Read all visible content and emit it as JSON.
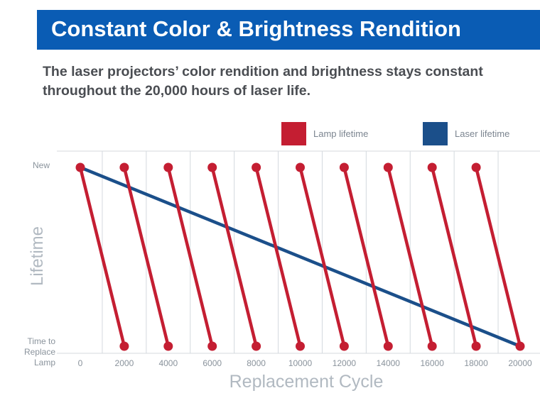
{
  "header": {
    "title": "Constant Color & Brightness Rendition",
    "subtitle_line1": "The laser projectors’ color rendition and brightness stays constant",
    "subtitle_line2": "throughout the 20,000 hours of laser life."
  },
  "colors": {
    "banner": "#0a5cb4",
    "lamp": "#c41e32",
    "laser": "#1b4f8a",
    "grid": "#d4d9de"
  },
  "chart_data": {
    "type": "line",
    "xlabel": "Replacement Cycle",
    "ylabel": "Lifetime",
    "x_ticks": [
      "0",
      "2000",
      "4000",
      "6000",
      "8000",
      "10000",
      "12000",
      "14000",
      "16000",
      "18000",
      "20000"
    ],
    "y_categories": {
      "top": "New",
      "bottom_line1": "Time to",
      "bottom_line2": "Replace",
      "bottom_line3": "Lamp"
    },
    "xlim": [
      0,
      20000
    ],
    "ylim": [
      0,
      1
    ],
    "legend": {
      "lamp": "Lamp lifetime",
      "laser": "Laser lifetime",
      "placement": "top-right"
    },
    "lamp_segments": [
      {
        "x_start": 0,
        "x_end": 2000
      },
      {
        "x_start": 2000,
        "x_end": 4000
      },
      {
        "x_start": 4000,
        "x_end": 6000
      },
      {
        "x_start": 6000,
        "x_end": 8000
      },
      {
        "x_start": 8000,
        "x_end": 10000
      },
      {
        "x_start": 10000,
        "x_end": 12000
      },
      {
        "x_start": 12000,
        "x_end": 14000
      },
      {
        "x_start": 14000,
        "x_end": 16000
      },
      {
        "x_start": 16000,
        "x_end": 18000
      },
      {
        "x_start": 18000,
        "x_end": 20000
      }
    ],
    "laser_segment": {
      "x_start": 0,
      "x_end": 20000
    }
  }
}
